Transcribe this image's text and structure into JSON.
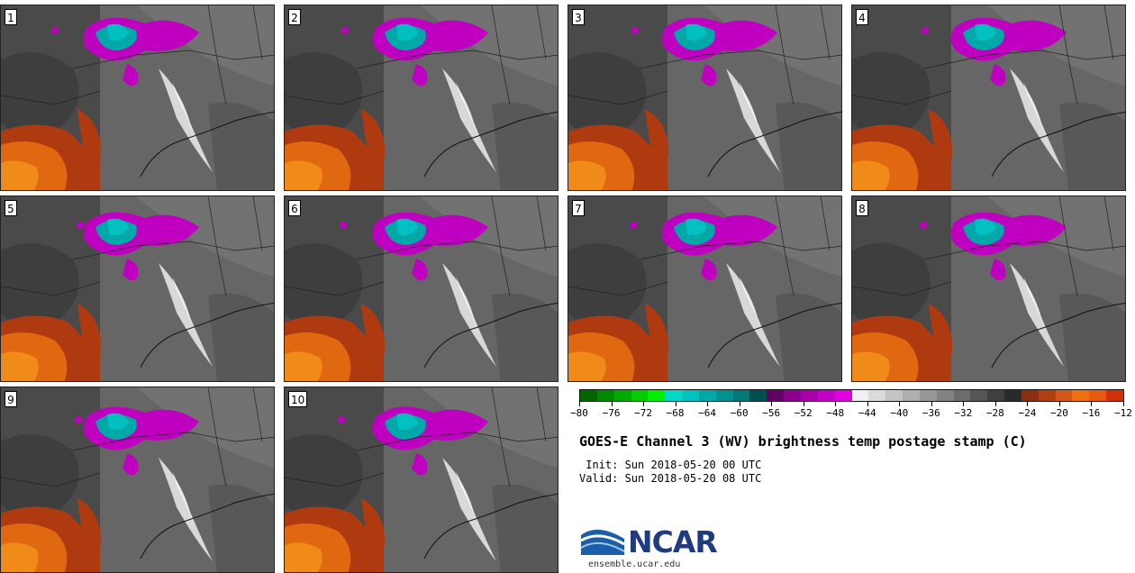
{
  "panels": [
    "1",
    "2",
    "3",
    "4",
    "5",
    "6",
    "7",
    "8",
    "9",
    "10"
  ],
  "colorbar": {
    "colors": [
      "#006600",
      "#008800",
      "#00aa00",
      "#00cc00",
      "#00ee00",
      "#00d8c8",
      "#00c0c0",
      "#00a8a8",
      "#009090",
      "#007878",
      "#005050",
      "#600060",
      "#8a008a",
      "#a800a8",
      "#c400c4",
      "#e000e0",
      "#f0f0f0",
      "#dadada",
      "#c4c4c4",
      "#aeaeae",
      "#989898",
      "#828282",
      "#6c6c6c",
      "#565656",
      "#404040",
      "#2a2a2a",
      "#8a3010",
      "#b04010",
      "#d05818",
      "#ee7010",
      "#e85810",
      "#d03008"
    ],
    "tick_labels": [
      "−80",
      "−76",
      "−72",
      "−68",
      "−64",
      "−60",
      "−56",
      "−52",
      "−48",
      "−44",
      "−40",
      "−36",
      "−32",
      "−28",
      "−24",
      "−20",
      "−16",
      "−12"
    ]
  },
  "title": "GOES-E Channel 3 (WV) brightness temp postage stamp (C)",
  "init_label": " Init: Sun 2018-05-20 00 UTC",
  "valid_label": "Valid: Sun 2018-05-20 08 UTC",
  "logo_text": "NCAR",
  "site": "ensemble.ucar.edu"
}
